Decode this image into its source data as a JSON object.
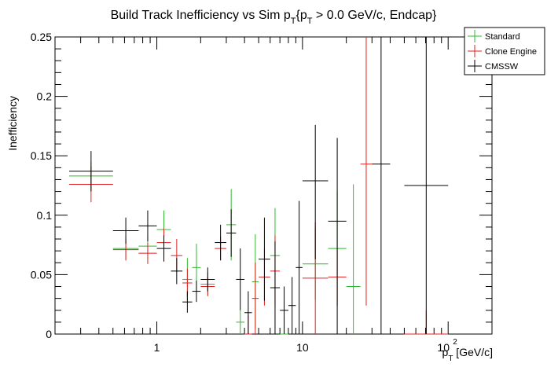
{
  "chart_data": {
    "type": "scatter",
    "title_main": "Build Track Inefficiency vs Sim p",
    "title_sub1": "T",
    "title_mid": "{p",
    "title_sub2": "T",
    "title_end": " > 0.0 GeV/c, Endcap}",
    "xlabel_main": "p",
    "xlabel_sub": "T",
    "xlabel_unit": " [GeV/c]",
    "ylabel": "Inefficiency",
    "xscale": "log",
    "xlim": [
      0.2,
      200
    ],
    "ylim": [
      0,
      0.25
    ],
    "grid": false,
    "legend_placement": "top-right",
    "x_tick_labels": [
      {
        "x": 1,
        "base": "1",
        "exp": ""
      },
      {
        "x": 10,
        "base": "10",
        "exp": ""
      },
      {
        "x": 100,
        "base": "10",
        "exp": "2"
      }
    ],
    "y_tick_labels": [
      {
        "y": 0,
        "label": "0"
      },
      {
        "y": 0.05,
        "label": "0.05"
      },
      {
        "y": 0.1,
        "label": "0.1"
      },
      {
        "y": 0.15,
        "label": "0.15"
      },
      {
        "y": 0.2,
        "label": "0.2"
      },
      {
        "y": 0.25,
        "label": "0.25"
      }
    ],
    "series": [
      {
        "name": "Standard",
        "color": "#2fb82f",
        "points": [
          {
            "xlo": 0.25,
            "xhi": 0.5,
            "y": 0.133,
            "elo": 0.012,
            "ehi": 0.012
          },
          {
            "xlo": 0.5,
            "xhi": 0.75,
            "y": 0.072,
            "elo": 0.01,
            "ehi": 0.01
          },
          {
            "xlo": 0.75,
            "xhi": 1.0,
            "y": 0.074,
            "elo": 0.01,
            "ehi": 0.01
          },
          {
            "xlo": 1.0,
            "xhi": 1.25,
            "y": 0.088,
            "elo": 0.016,
            "ehi": 0.016
          },
          {
            "xlo": 1.5,
            "xhi": 1.75,
            "y": 0.046,
            "elo": 0.018,
            "ehi": 0.018
          },
          {
            "xlo": 1.75,
            "xhi": 2.0,
            "y": 0.056,
            "elo": 0.02,
            "ehi": 0.02
          },
          {
            "xlo": 2.0,
            "xhi": 2.5,
            "y": 0.042,
            "elo": 0.01,
            "ehi": 0.01
          },
          {
            "xlo": 3.0,
            "xhi": 3.5,
            "y": 0.092,
            "elo": 0.03,
            "ehi": 0.03
          },
          {
            "xlo": 3.5,
            "xhi": 4.0,
            "y": 0.01,
            "elo": 0.01,
            "ehi": 0.01
          },
          {
            "xlo": 4.5,
            "xhi": 5.0,
            "y": 0.044,
            "elo": 0.04,
            "ehi": 0.04
          },
          {
            "xlo": 6.0,
            "xhi": 7.0,
            "y": 0.066,
            "elo": 0.04,
            "ehi": 0.04
          },
          {
            "xlo": 7.0,
            "xhi": 8.0,
            "y": 0.0,
            "elo": 0.0,
            "ehi": 0.014
          },
          {
            "xlo": 10.0,
            "xhi": 15.0,
            "y": 0.059,
            "elo": 0.03,
            "ehi": 0.03
          },
          {
            "xlo": 15.0,
            "xhi": 20.0,
            "y": 0.072,
            "elo": 0.048,
            "ehi": 0.048
          },
          {
            "xlo": 20.0,
            "xhi": 25.0,
            "y": 0.04,
            "elo": 0.04,
            "ehi": 0.086
          }
        ]
      },
      {
        "name": "Clone Engine",
        "color": "#e02020",
        "points": [
          {
            "xlo": 0.25,
            "xhi": 0.5,
            "y": 0.126,
            "elo": 0.015,
            "ehi": 0.015
          },
          {
            "xlo": 0.5,
            "xhi": 0.75,
            "y": 0.071,
            "elo": 0.009,
            "ehi": 0.009
          },
          {
            "xlo": 0.75,
            "xhi": 1.0,
            "y": 0.068,
            "elo": 0.009,
            "ehi": 0.009
          },
          {
            "xlo": 1.0,
            "xhi": 1.25,
            "y": 0.077,
            "elo": 0.012,
            "ehi": 0.012
          },
          {
            "xlo": 1.25,
            "xhi": 1.5,
            "y": 0.066,
            "elo": 0.014,
            "ehi": 0.014
          },
          {
            "xlo": 1.5,
            "xhi": 1.75,
            "y": 0.043,
            "elo": 0.012,
            "ehi": 0.012
          },
          {
            "xlo": 2.0,
            "xhi": 2.5,
            "y": 0.04,
            "elo": 0.008,
            "ehi": 0.008
          },
          {
            "xlo": 2.5,
            "xhi": 3.0,
            "y": 0.072,
            "elo": 0.01,
            "ehi": 0.01
          },
          {
            "xlo": 4.0,
            "xhi": 4.5,
            "y": 0.0,
            "elo": 0.0,
            "ehi": 0.016
          },
          {
            "xlo": 4.5,
            "xhi": 5.0,
            "y": 0.03,
            "elo": 0.03,
            "ehi": 0.03
          },
          {
            "xlo": 5.0,
            "xhi": 6.0,
            "y": 0.048,
            "elo": 0.024,
            "ehi": 0.024
          },
          {
            "xlo": 6.0,
            "xhi": 7.0,
            "y": 0.053,
            "elo": 0.03,
            "ehi": 0.03
          },
          {
            "xlo": 10.0,
            "xhi": 15.0,
            "y": 0.047,
            "elo": 0.047,
            "ehi": 0.047
          },
          {
            "xlo": 15.0,
            "xhi": 20.0,
            "y": 0.048,
            "elo": 0.024,
            "ehi": 0.024
          },
          {
            "xlo": 25.0,
            "xhi": 30.0,
            "y": 0.143,
            "elo": 0.119,
            "ehi": 0.107
          },
          {
            "xlo": 50.0,
            "xhi": 100.0,
            "y": 0.0,
            "elo": 0.0,
            "ehi": 0.02
          }
        ]
      },
      {
        "name": "CMSSW",
        "color": "#000000",
        "points": [
          {
            "xlo": 0.25,
            "xhi": 0.5,
            "y": 0.137,
            "elo": 0.017,
            "ehi": 0.017
          },
          {
            "xlo": 0.5,
            "xhi": 0.75,
            "y": 0.087,
            "elo": 0.011,
            "ehi": 0.011
          },
          {
            "xlo": 0.75,
            "xhi": 1.0,
            "y": 0.091,
            "elo": 0.013,
            "ehi": 0.013
          },
          {
            "xlo": 1.0,
            "xhi": 1.25,
            "y": 0.072,
            "elo": 0.011,
            "ehi": 0.011
          },
          {
            "xlo": 1.25,
            "xhi": 1.5,
            "y": 0.053,
            "elo": 0.011,
            "ehi": 0.011
          },
          {
            "xlo": 1.5,
            "xhi": 1.75,
            "y": 0.027,
            "elo": 0.009,
            "ehi": 0.009
          },
          {
            "xlo": 1.75,
            "xhi": 2.0,
            "y": 0.036,
            "elo": 0.009,
            "ehi": 0.009
          },
          {
            "xlo": 2.0,
            "xhi": 2.5,
            "y": 0.046,
            "elo": 0.01,
            "ehi": 0.01
          },
          {
            "xlo": 2.5,
            "xhi": 3.0,
            "y": 0.077,
            "elo": 0.015,
            "ehi": 0.015
          },
          {
            "xlo": 3.0,
            "xhi": 3.5,
            "y": 0.085,
            "elo": 0.02,
            "ehi": 0.02
          },
          {
            "xlo": 3.5,
            "xhi": 4.0,
            "y": 0.046,
            "elo": 0.026,
            "ehi": 0.026
          },
          {
            "xlo": 4.0,
            "xhi": 4.5,
            "y": 0.018,
            "elo": 0.018,
            "ehi": 0.018
          },
          {
            "xlo": 5.0,
            "xhi": 6.0,
            "y": 0.063,
            "elo": 0.035,
            "ehi": 0.035
          },
          {
            "xlo": 6.0,
            "xhi": 7.0,
            "y": 0.039,
            "elo": 0.039,
            "ehi": 0.039
          },
          {
            "xlo": 7.0,
            "xhi": 8.0,
            "y": 0.02,
            "elo": 0.02,
            "ehi": 0.02
          },
          {
            "xlo": 8.0,
            "xhi": 9.0,
            "y": 0.024,
            "elo": 0.024,
            "ehi": 0.024
          },
          {
            "xlo": 9.0,
            "xhi": 10.0,
            "y": 0.056,
            "elo": 0.056,
            "ehi": 0.056
          },
          {
            "xlo": 10.0,
            "xhi": 15.0,
            "y": 0.129,
            "elo": 0.066,
            "ehi": 0.047
          },
          {
            "xlo": 15.0,
            "xhi": 20.0,
            "y": 0.095,
            "elo": 0.095,
            "ehi": 0.07
          },
          {
            "xlo": 30.0,
            "xhi": 40.0,
            "y": 0.143,
            "elo": 0.143,
            "ehi": 0.107
          },
          {
            "xlo": 50.0,
            "xhi": 100.0,
            "y": 0.125,
            "elo": 0.125,
            "ehi": 0.125
          }
        ]
      }
    ]
  }
}
